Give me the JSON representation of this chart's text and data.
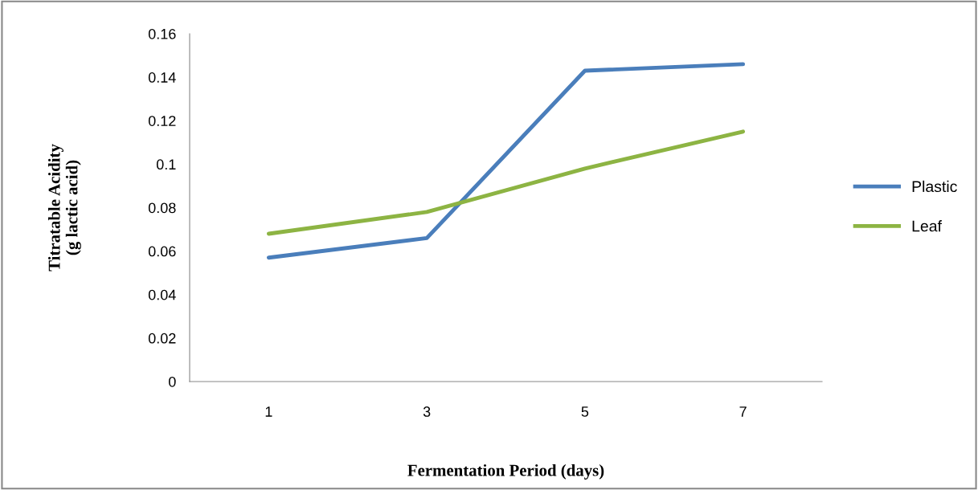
{
  "chart_data": {
    "type": "line",
    "xlabel": "Fermentation Period (days)",
    "ylabel": "Titratable Acidity\n(g lactic acid)",
    "categories": [
      "1",
      "3",
      "5",
      "7"
    ],
    "series": [
      {
        "name": "Plastic",
        "color": "#4a7ebb",
        "values": [
          0.057,
          0.066,
          0.143,
          0.146
        ]
      },
      {
        "name": "Leaf",
        "color": "#8db443",
        "values": [
          0.068,
          0.078,
          0.098,
          0.115
        ]
      }
    ],
    "ylim": [
      0,
      0.16
    ],
    "yticks": [
      {
        "value": 0,
        "label": "0"
      },
      0.02,
      0.04,
      0.06,
      0.08,
      {
        "value": 0.1,
        "label": "0.1"
      },
      0.12,
      0.14,
      0.16
    ],
    "grid": false,
    "legend": "right",
    "marker": "none",
    "line_style": "solid"
  }
}
